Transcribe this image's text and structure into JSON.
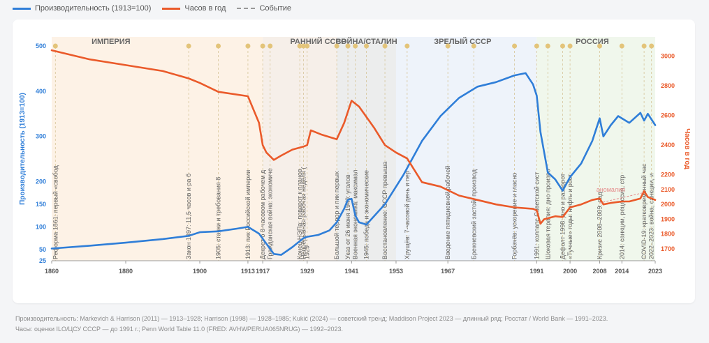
{
  "legend": {
    "items": [
      {
        "label": "Производительность (1913=100)",
        "color": "#2f7ed8",
        "style": "solid"
      },
      {
        "label": "Часов в год",
        "color": "#ea5a2a",
        "style": "solid"
      },
      {
        "label": "Событие",
        "color": "#999999",
        "style": "dashed"
      }
    ]
  },
  "chart_data": {
    "type": "line",
    "title": "",
    "x_axis": {
      "min": 1860,
      "max": 2023,
      "ticks": [
        1860,
        1880,
        1900,
        1913,
        1917,
        1929,
        1941,
        1953,
        1967,
        1991,
        2000,
        2008,
        2014,
        2023
      ]
    },
    "y_left": {
      "label": "Производительность (1913=100)",
      "color": "#2f7ed8",
      "min": 25,
      "max": 520,
      "ticks": [
        25,
        50,
        100,
        150,
        200,
        300,
        400,
        500
      ]
    },
    "y_right": {
      "label": "Часов в год",
      "color": "#ea5a2a",
      "min": 1620,
      "max": 3130,
      "ticks": [
        1700,
        1800,
        1900,
        2000,
        2100,
        2200,
        2400,
        2600,
        2800,
        3000
      ]
    },
    "eras": [
      {
        "label": "ИМПЕРИЯ",
        "start": 1860,
        "end": 1917,
        "color": "#fdf2e6"
      },
      {
        "label": "РАННИЙ СССР",
        "start": 1917,
        "end": 1937,
        "color": "#f6efe9"
      },
      {
        "label": "ВОЙНА/СТАЛИН",
        "start": 1937,
        "end": 1953,
        "color": "#eceded"
      },
      {
        "label": "ЗРЕЛЫЙ СССР",
        "start": 1953,
        "end": 1991,
        "color": "#eef3fa"
      },
      {
        "label": "РОССИЯ",
        "start": 1991,
        "end": 2023,
        "color": "#f0f7ec"
      }
    ],
    "series": [
      {
        "name": "Производительность (1913=100)",
        "axis": "left",
        "color": "#2f7ed8",
        "points": [
          [
            1860,
            52
          ],
          [
            1870,
            58
          ],
          [
            1880,
            65
          ],
          [
            1890,
            73
          ],
          [
            1897,
            80
          ],
          [
            1900,
            88
          ],
          [
            1905,
            90
          ],
          [
            1910,
            96
          ],
          [
            1913,
            100
          ],
          [
            1916,
            85
          ],
          [
            1920,
            40
          ],
          [
            1922,
            38
          ],
          [
            1925,
            55
          ],
          [
            1928,
            75
          ],
          [
            1929,
            78
          ],
          [
            1932,
            82
          ],
          [
            1935,
            92
          ],
          [
            1937,
            110
          ],
          [
            1939,
            140
          ],
          [
            1940,
            160
          ],
          [
            1941,
            162
          ],
          [
            1942,
            125
          ],
          [
            1943,
            110
          ],
          [
            1945,
            105
          ],
          [
            1950,
            150
          ],
          [
            1955,
            215
          ],
          [
            1960,
            290
          ],
          [
            1965,
            345
          ],
          [
            1970,
            385
          ],
          [
            1975,
            410
          ],
          [
            1980,
            420
          ],
          [
            1985,
            435
          ],
          [
            1988,
            440
          ],
          [
            1990,
            415
          ],
          [
            1991,
            390
          ],
          [
            1992,
            310
          ],
          [
            1994,
            220
          ],
          [
            1996,
            205
          ],
          [
            1998,
            180
          ],
          [
            2000,
            210
          ],
          [
            2003,
            240
          ],
          [
            2006,
            290
          ],
          [
            2008,
            340
          ],
          [
            2009,
            300
          ],
          [
            2011,
            325
          ],
          [
            2013,
            345
          ],
          [
            2015,
            335
          ],
          [
            2016,
            330
          ],
          [
            2019,
            352
          ],
          [
            2020,
            335
          ],
          [
            2021,
            350
          ],
          [
            2023,
            325
          ]
        ]
      },
      {
        "name": "Часов в год",
        "axis": "right",
        "color": "#ea5a2a",
        "points": [
          [
            1860,
            3040
          ],
          [
            1870,
            2980
          ],
          [
            1880,
            2940
          ],
          [
            1890,
            2900
          ],
          [
            1897,
            2850
          ],
          [
            1900,
            2820
          ],
          [
            1905,
            2760
          ],
          [
            1913,
            2730
          ],
          [
            1916,
            2550
          ],
          [
            1917,
            2400
          ],
          [
            1918,
            2350
          ],
          [
            1920,
            2300
          ],
          [
            1922,
            2330
          ],
          [
            1925,
            2370
          ],
          [
            1928,
            2390
          ],
          [
            1929,
            2400
          ],
          [
            1930,
            2500
          ],
          [
            1933,
            2470
          ],
          [
            1937,
            2440
          ],
          [
            1939,
            2550
          ],
          [
            1941,
            2700
          ],
          [
            1943,
            2660
          ],
          [
            1947,
            2520
          ],
          [
            1950,
            2400
          ],
          [
            1953,
            2350
          ],
          [
            1956,
            2310
          ],
          [
            1958,
            2230
          ],
          [
            1960,
            2150
          ],
          [
            1965,
            2120
          ],
          [
            1970,
            2060
          ],
          [
            1975,
            2030
          ],
          [
            1980,
            2000
          ],
          [
            1985,
            1980
          ],
          [
            1990,
            1970
          ],
          [
            1991,
            1960
          ],
          [
            1992,
            1870
          ],
          [
            1993,
            1900
          ],
          [
            1996,
            1920
          ],
          [
            1998,
            1915
          ],
          [
            2000,
            1980
          ],
          [
            2003,
            2000
          ],
          [
            2006,
            2030
          ],
          [
            2008,
            2040
          ],
          [
            2009,
            2000
          ],
          [
            2011,
            2010
          ],
          [
            2014,
            2020
          ],
          [
            2016,
            2020
          ],
          [
            2019,
            2040
          ],
          [
            2020,
            2090
          ],
          [
            2021,
            2050
          ],
          [
            2023,
            2030
          ]
        ]
      }
    ],
    "anomaly_label": "аномалия",
    "event_dots_y": 500,
    "events": [
      {
        "year": 1861,
        "label": "Реформа 1861: первый «свобод"
      },
      {
        "year": 1897,
        "label": "Закон 1897: 11,5 часов и ра б"
      },
      {
        "year": 1905,
        "label": "1905: стачки и требования 8"
      },
      {
        "year": 1913,
        "label": "1913: пик Российской империи"
      },
      {
        "year": 1917,
        "label": "Декрет о 8-часовом рабочем д"
      },
      {
        "year": 1919,
        "label": "Гражданская война: экономиче"
      },
      {
        "year": 1927,
        "label": "Конец НЭПа: поворот к планов"
      },
      {
        "year": 1928,
        "label": "Непрерывная рабочая неделя ("
      },
      {
        "year": 1929,
        "label": "1929"
      },
      {
        "year": 1937,
        "label": "Большой террор и пик первых"
      },
      {
        "year": 1940,
        "label": "Указ от 26 июня 1940: уголов"
      },
      {
        "year": 1942,
        "label": "Военная экономика: максимал"
      },
      {
        "year": 1945,
        "label": "1945: победа и экономические"
      },
      {
        "year": 1950,
        "label": "Восстановление: СССР превыша"
      },
      {
        "year": 1956,
        "label": "Хрущёв: 7-часовой день и пер"
      },
      {
        "year": 1967,
        "label": "Введение пятидневной рабочей"
      },
      {
        "year": 1974,
        "label": "Брежневский застой: производ"
      },
      {
        "year": 1985,
        "label": "Горбачёв: ускорение и гласно"
      },
      {
        "year": 1991,
        "label": "1991: коллапс Советской сист"
      },
      {
        "year": 1994,
        "label": "Шоковая терапия: дно произво"
      },
      {
        "year": 1998,
        "label": "Дефолт 1998: дно и разворот"
      },
      {
        "year": 2000,
        "label": "«Тучные» годы: нефть и рост"
      },
      {
        "year": 2008,
        "label": "Кризис 2008–2009: пад"
      },
      {
        "year": 2014,
        "label": "2014: санкции, рецессия, стр"
      },
      {
        "year": 2020,
        "label": "COVID-19: кратковременный час"
      },
      {
        "year": 2022,
        "label": "2022–2023: война, санкции, и"
      }
    ]
  },
  "source": {
    "line1": "Производительность: Markevich & Harrison (2011) — 1913–1928; Harrison (1998) — 1928–1985; Kukić (2024) — советский тренд; Maddison Project 2023 — длинный ряд; Росстат / World Bank — 1991–2023.",
    "line2": "Часы: оценки ILO/ЦСУ СССР — до 1991 г.; Penn World Table 11.0 (FRED: AVHWPERUA065NRUG) — 1992–2023."
  }
}
